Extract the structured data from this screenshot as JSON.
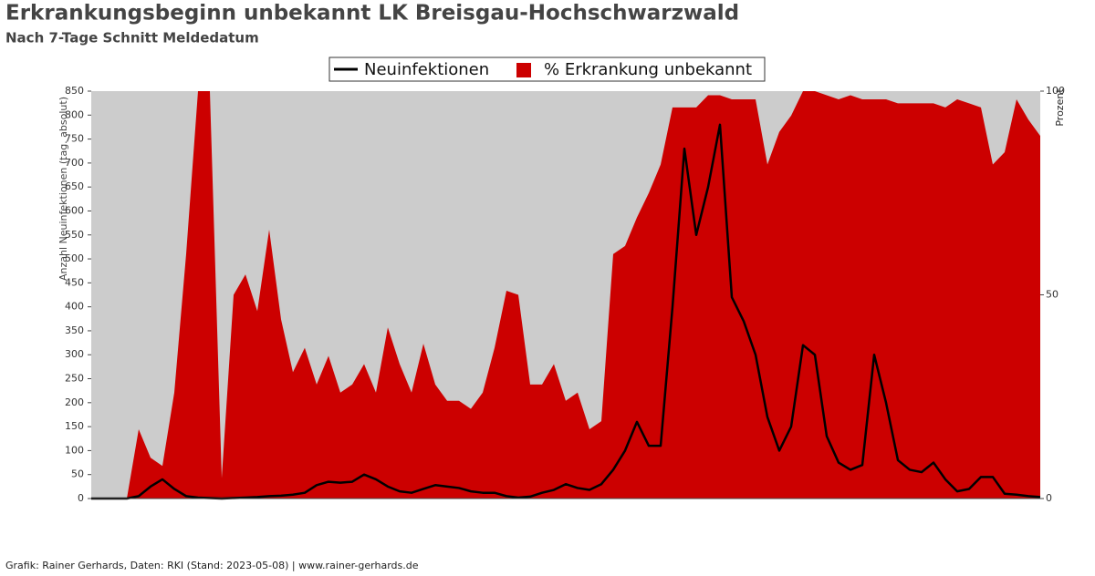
{
  "chart_data": {
    "type": "line_area",
    "title": "Erkrankungsbeginn unbekannt LK Breisgau-Hochschwarzwald",
    "subtitle": "Nach 7-Tage Schnitt Meldedatum",
    "y_label": "Anzahl Neuinfektionen (tag. absolut)",
    "y2_label": "Prozent",
    "footer": "Grafik: Rainer Gerhards, Daten: RKI (Stand: 2023-05-08) | www.rainer-gerhards.de",
    "categories": [
      null,
      null,
      null,
      null,
      null,
      null,
      null,
      null,
      null,
      null,
      null,
      null,
      null,
      null,
      null,
      null,
      null,
      null,
      null,
      null,
      null,
      null,
      null,
      null,
      null,
      null,
      null,
      null,
      null,
      null,
      null,
      null,
      null,
      null,
      null,
      null,
      null,
      null,
      null,
      null,
      null,
      null,
      null,
      null,
      null,
      null,
      null,
      null,
      null,
      null,
      null,
      null,
      null,
      null,
      null,
      null,
      null,
      null,
      null,
      null,
      null,
      null,
      null,
      null,
      null,
      null,
      null,
      null,
      null,
      null,
      null,
      null,
      null,
      null,
      null,
      null,
      null,
      null,
      null,
      null,
      null
    ],
    "series": [
      {
        "name": "Neuinfektionen",
        "color": "#000000",
        "axis": "y",
        "kind": "line",
        "values": [
          0,
          0,
          0,
          0,
          5,
          25,
          40,
          20,
          5,
          2,
          1,
          0,
          1,
          2,
          3,
          5,
          6,
          8,
          12,
          28,
          35,
          33,
          35,
          50,
          40,
          25,
          15,
          12,
          20,
          28,
          25,
          22,
          15,
          12,
          12,
          5,
          2,
          4,
          12,
          18,
          30,
          22,
          18,
          30,
          60,
          100,
          160,
          110,
          110,
          400,
          730,
          550,
          650,
          780,
          420,
          370,
          300,
          170,
          100,
          150,
          320,
          300,
          130,
          75,
          60,
          70,
          300,
          200,
          80,
          60,
          55,
          75,
          40,
          15,
          20,
          45,
          45,
          10,
          8,
          5,
          3
        ]
      },
      {
        "name": "% Erkrankung unbekannt",
        "color": "#cc0000",
        "axis": "y2",
        "kind": "area",
        "values": [
          0,
          0,
          0,
          0,
          17,
          10,
          8,
          26,
          60,
          100,
          100,
          5,
          50,
          55,
          46,
          66,
          44,
          31,
          37,
          28,
          35,
          26,
          28,
          33,
          26,
          42,
          33,
          26,
          38,
          28,
          24,
          24,
          22,
          26,
          37,
          51,
          50,
          28,
          28,
          33,
          24,
          26,
          17,
          19,
          60,
          62,
          69,
          75,
          82,
          96,
          96,
          96,
          99,
          99,
          98,
          98,
          98,
          82,
          90,
          94,
          100,
          100,
          99,
          98,
          99,
          98,
          98,
          98,
          97,
          97,
          97,
          97,
          96,
          98,
          97,
          96,
          82,
          85,
          98,
          93,
          89
        ]
      }
    ],
    "ylim": [
      0,
      850
    ],
    "yticks": [
      0,
      50,
      100,
      150,
      200,
      250,
      300,
      350,
      400,
      450,
      500,
      550,
      600,
      650,
      700,
      750,
      800,
      850
    ],
    "y2lim": [
      0,
      100
    ],
    "y2ticks": [
      0,
      50,
      100
    ],
    "background": "#cccccc"
  }
}
